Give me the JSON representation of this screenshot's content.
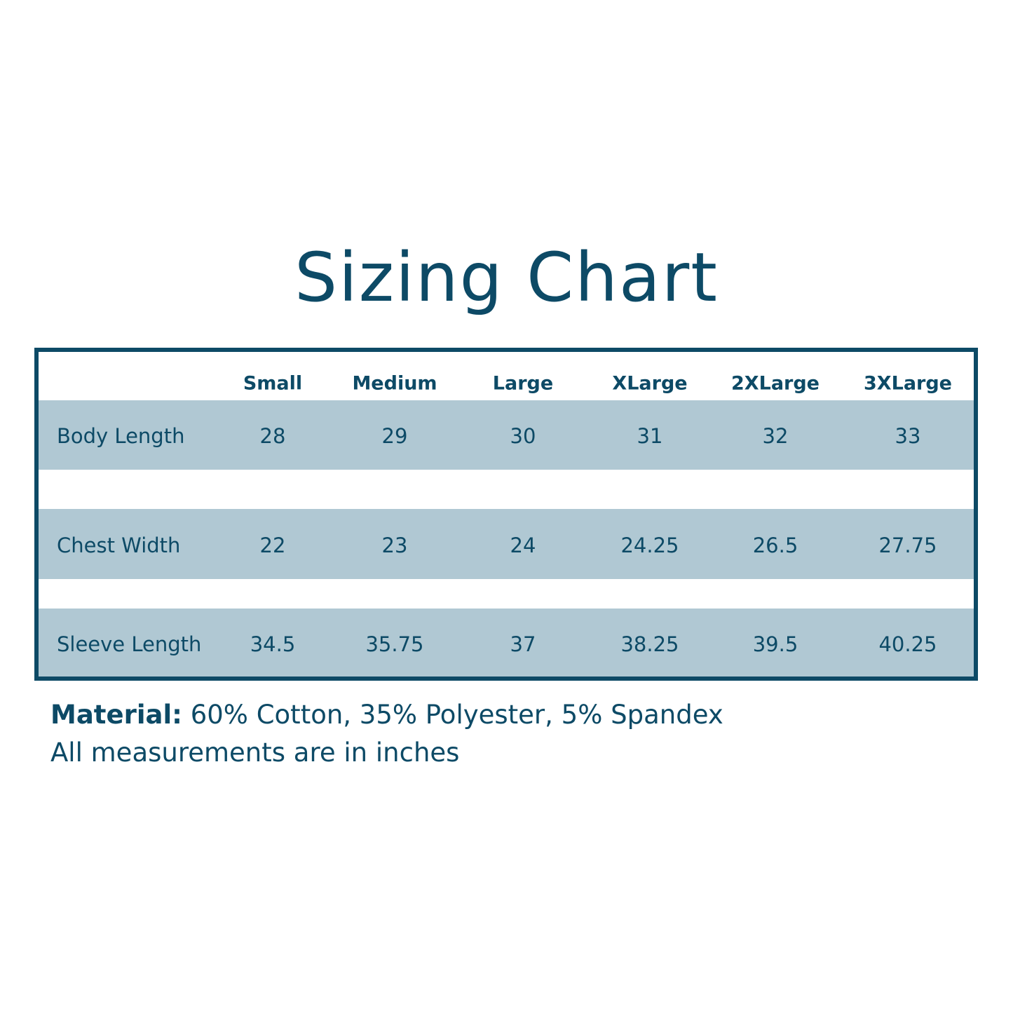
{
  "title": "Sizing Chart",
  "table": {
    "columns": [
      "Small",
      "Medium",
      "Large",
      "XLarge",
      "2XLarge",
      "3XLarge"
    ],
    "rows": [
      {
        "label": "Body Length",
        "values": [
          "28",
          "29",
          "30",
          "31",
          "32",
          "33"
        ]
      },
      {
        "label": "Chest Width",
        "values": [
          "22",
          "23",
          "24",
          "24.25",
          "26.5",
          "27.75"
        ]
      },
      {
        "label": "Sleeve Length",
        "values": [
          "34.5",
          "35.75",
          "37",
          "38.25",
          "39.5",
          "40.25"
        ]
      }
    ]
  },
  "footer": {
    "material_label": "Material:",
    "material_value": " 60% Cotton, 35% Polyester, 5% Spandex",
    "note": "All measurements are in inches"
  },
  "colors": {
    "primary": "#0d4a66",
    "band": "#b0c8d3"
  }
}
